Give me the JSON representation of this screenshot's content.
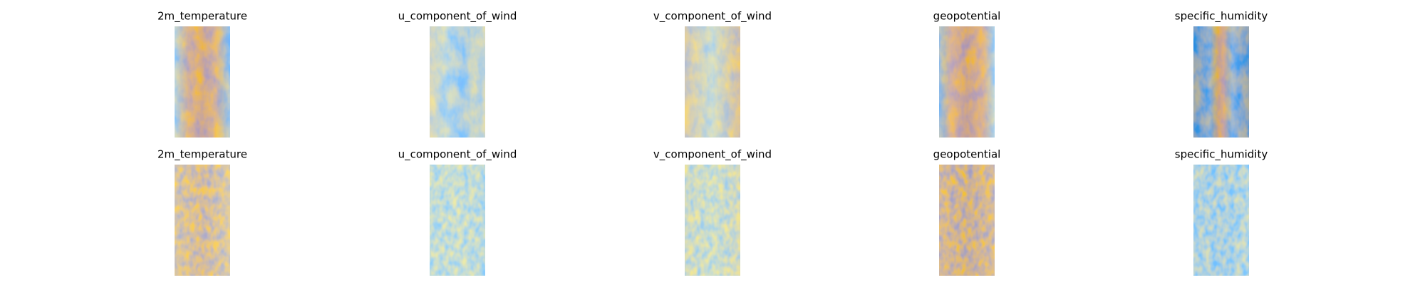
{
  "rows": [
    [
      "2m_temperature",
      "u_component_of_wind",
      "v_component_of_wind",
      "geopotential",
      "specific_humidity"
    ],
    [
      "2m_temperature",
      "u_component_of_wind",
      "v_component_of_wind",
      "geopotential",
      "specific_humidity"
    ]
  ]
}
